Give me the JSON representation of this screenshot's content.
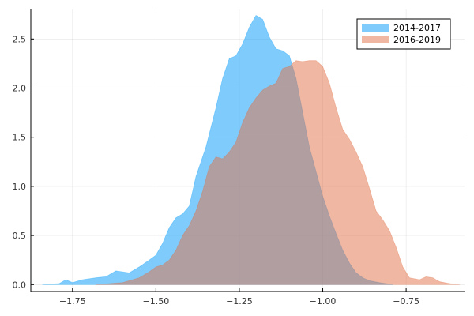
{
  "chart_data": {
    "type": "area",
    "xlim": [
      -1.875,
      -0.575
    ],
    "ylim": [
      -0.07,
      2.8
    ],
    "x_ticks": [
      -1.75,
      -1.5,
      -1.25,
      -1.0,
      -0.75
    ],
    "x_tick_labels": [
      "−1.75",
      "−1.50",
      "−1.25",
      "−1.00",
      "−0.75"
    ],
    "y_ticks": [
      0.0,
      0.5,
      1.0,
      1.5,
      2.0,
      2.5
    ],
    "y_tick_labels": [
      "0.0",
      "0.5",
      "1.0",
      "1.5",
      "2.0",
      "2.5"
    ],
    "grid": true,
    "legend_position": "top-right",
    "series": [
      {
        "name": "2014-2017",
        "color": "#009AFA",
        "opacity": 0.5,
        "points": [
          [
            -1.84,
            0.0
          ],
          [
            -1.79,
            0.01
          ],
          [
            -1.77,
            0.05
          ],
          [
            -1.75,
            0.02
          ],
          [
            -1.72,
            0.05
          ],
          [
            -1.68,
            0.07
          ],
          [
            -1.65,
            0.08
          ],
          [
            -1.62,
            0.14
          ],
          [
            -1.6,
            0.13
          ],
          [
            -1.58,
            0.12
          ],
          [
            -1.55,
            0.18
          ],
          [
            -1.52,
            0.25
          ],
          [
            -1.5,
            0.3
          ],
          [
            -1.48,
            0.42
          ],
          [
            -1.46,
            0.58
          ],
          [
            -1.44,
            0.68
          ],
          [
            -1.42,
            0.72
          ],
          [
            -1.4,
            0.8
          ],
          [
            -1.38,
            1.1
          ],
          [
            -1.35,
            1.4
          ],
          [
            -1.32,
            1.8
          ],
          [
            -1.3,
            2.1
          ],
          [
            -1.28,
            2.3
          ],
          [
            -1.26,
            2.33
          ],
          [
            -1.24,
            2.45
          ],
          [
            -1.22,
            2.62
          ],
          [
            -1.2,
            2.74
          ],
          [
            -1.18,
            2.7
          ],
          [
            -1.16,
            2.52
          ],
          [
            -1.14,
            2.4
          ],
          [
            -1.12,
            2.38
          ],
          [
            -1.1,
            2.33
          ],
          [
            -1.08,
            2.1
          ],
          [
            -1.06,
            1.75
          ],
          [
            -1.04,
            1.4
          ],
          [
            -1.02,
            1.15
          ],
          [
            -1.0,
            0.9
          ],
          [
            -0.98,
            0.7
          ],
          [
            -0.96,
            0.52
          ],
          [
            -0.94,
            0.35
          ],
          [
            -0.92,
            0.22
          ],
          [
            -0.9,
            0.12
          ],
          [
            -0.88,
            0.07
          ],
          [
            -0.86,
            0.04
          ],
          [
            -0.83,
            0.02
          ],
          [
            -0.79,
            0.0
          ]
        ]
      },
      {
        "name": "2016-2019",
        "color": "#E26F46",
        "opacity": 0.5,
        "points": [
          [
            -1.68,
            0.0
          ],
          [
            -1.6,
            0.02
          ],
          [
            -1.55,
            0.07
          ],
          [
            -1.52,
            0.13
          ],
          [
            -1.5,
            0.18
          ],
          [
            -1.48,
            0.2
          ],
          [
            -1.46,
            0.25
          ],
          [
            -1.44,
            0.35
          ],
          [
            -1.42,
            0.5
          ],
          [
            -1.4,
            0.6
          ],
          [
            -1.38,
            0.75
          ],
          [
            -1.36,
            0.95
          ],
          [
            -1.34,
            1.2
          ],
          [
            -1.32,
            1.3
          ],
          [
            -1.3,
            1.28
          ],
          [
            -1.28,
            1.35
          ],
          [
            -1.26,
            1.45
          ],
          [
            -1.24,
            1.65
          ],
          [
            -1.22,
            1.8
          ],
          [
            -1.2,
            1.9
          ],
          [
            -1.18,
            1.98
          ],
          [
            -1.16,
            2.02
          ],
          [
            -1.14,
            2.05
          ],
          [
            -1.12,
            2.2
          ],
          [
            -1.1,
            2.22
          ],
          [
            -1.08,
            2.28
          ],
          [
            -1.06,
            2.27
          ],
          [
            -1.04,
            2.28
          ],
          [
            -1.02,
            2.28
          ],
          [
            -1.0,
            2.22
          ],
          [
            -0.98,
            2.05
          ],
          [
            -0.96,
            1.8
          ],
          [
            -0.94,
            1.58
          ],
          [
            -0.92,
            1.48
          ],
          [
            -0.9,
            1.35
          ],
          [
            -0.88,
            1.2
          ],
          [
            -0.86,
            0.98
          ],
          [
            -0.84,
            0.75
          ],
          [
            -0.82,
            0.66
          ],
          [
            -0.8,
            0.55
          ],
          [
            -0.78,
            0.38
          ],
          [
            -0.76,
            0.18
          ],
          [
            -0.74,
            0.07
          ],
          [
            -0.71,
            0.05
          ],
          [
            -0.69,
            0.08
          ],
          [
            -0.67,
            0.07
          ],
          [
            -0.65,
            0.03
          ],
          [
            -0.62,
            0.01
          ],
          [
            -0.59,
            0.0
          ]
        ]
      }
    ]
  }
}
